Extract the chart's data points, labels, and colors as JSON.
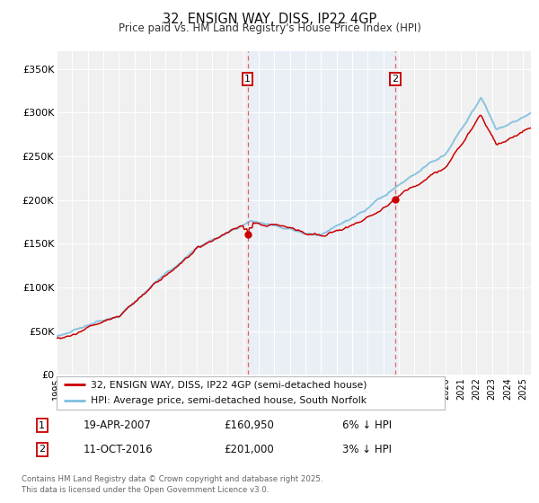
{
  "title": "32, ENSIGN WAY, DISS, IP22 4GP",
  "subtitle": "Price paid vs. HM Land Registry's House Price Index (HPI)",
  "legend_line1": "32, ENSIGN WAY, DISS, IP22 4GP (semi-detached house)",
  "legend_line2": "HPI: Average price, semi-detached house, South Norfolk",
  "annotation1_label": "1",
  "annotation1_date": "19-APR-2007",
  "annotation1_price": "£160,950",
  "annotation1_hpi": "6% ↓ HPI",
  "annotation2_label": "2",
  "annotation2_date": "11-OCT-2016",
  "annotation2_price": "£201,000",
  "annotation2_hpi": "3% ↓ HPI",
  "footnote": "Contains HM Land Registry data © Crown copyright and database right 2025.\nThis data is licensed under the Open Government Licence v3.0.",
  "hpi_color": "#7fbfdf",
  "price_color": "#cc0000",
  "annotation_color": "#cc0000",
  "vline_color": "#dd6666",
  "shade_color": "#ddeeff",
  "background_color": "#ffffff",
  "plot_bg_color": "#f0f0f0",
  "ylim": [
    0,
    370000
  ],
  "yticks": [
    0,
    50000,
    100000,
    150000,
    200000,
    250000,
    300000,
    350000
  ],
  "ytick_labels": [
    "£0",
    "£50K",
    "£100K",
    "£150K",
    "£200K",
    "£250K",
    "£300K",
    "£350K"
  ],
  "xlim_min": 1995.0,
  "xlim_max": 2025.5,
  "sale1_year": 2007.29,
  "sale1_price": 160950,
  "sale2_year": 2016.78,
  "sale2_price": 201000
}
